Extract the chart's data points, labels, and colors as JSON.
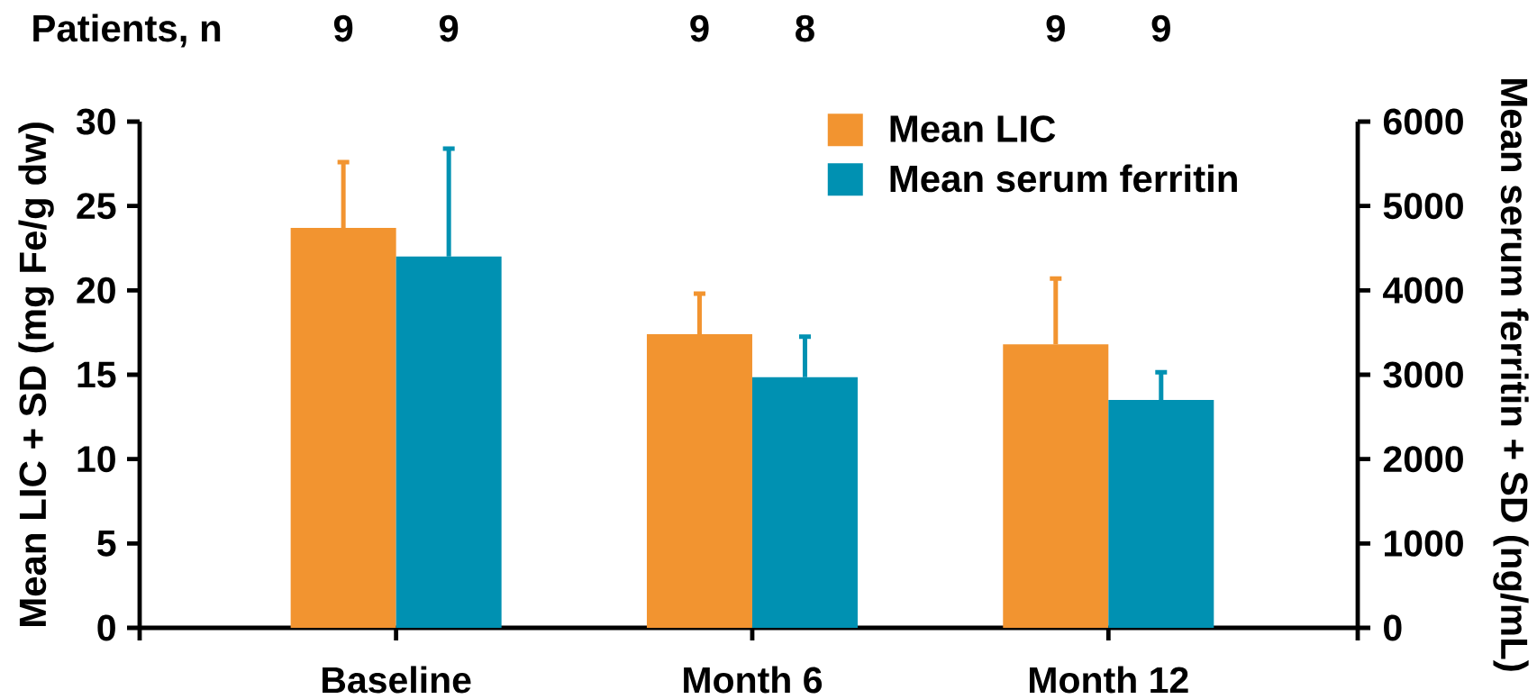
{
  "chart_data": {
    "type": "bar",
    "categories": [
      "Baseline",
      "Month 6",
      "Month 12"
    ],
    "series": [
      {
        "name": "Mean LIC",
        "color": "#f29430",
        "values": [
          23.7,
          17.4,
          16.8
        ],
        "errors": [
          [
            23.7,
            27.6
          ],
          [
            17.4,
            19.8
          ],
          [
            16.8,
            20.7
          ]
        ]
      },
      {
        "name": "Mean serum ferritin",
        "color": "#0091b2",
        "axis": "y2",
        "values": [
          4400,
          2970,
          2700
        ],
        "errors": [
          [
            4400,
            5680
          ],
          [
            2970,
            3450
          ],
          [
            2700,
            3030
          ]
        ]
      }
    ],
    "ylabel": "Mean LIC + SD (mg Fe/g dw)",
    "y2label": "Mean serum ferritin + SD (ng/mL)",
    "ylim": [
      0,
      30
    ],
    "yticks": [
      0,
      5,
      10,
      15,
      20,
      25,
      30
    ],
    "y2lim": [
      0,
      6000
    ],
    "y2ticks": [
      0,
      1000,
      2000,
      3000,
      4000,
      5000,
      6000
    ],
    "legend": "top right",
    "annotations": [
      "Patients, n",
      "9",
      "9",
      "9",
      "8",
      "9",
      "9"
    ]
  }
}
